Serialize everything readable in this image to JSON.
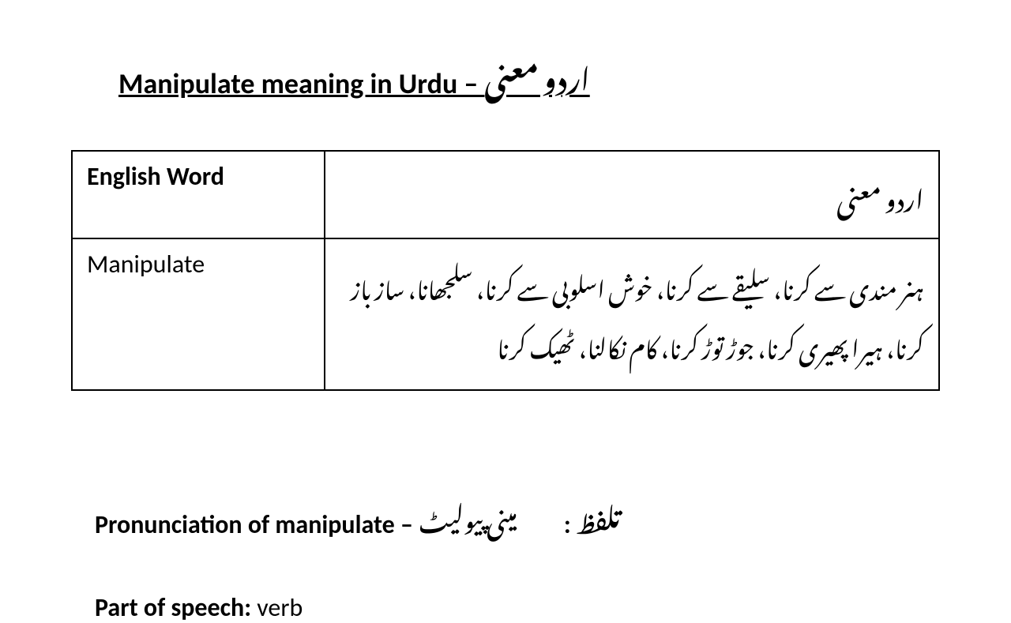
{
  "title": {
    "english_part": "Manipulate meaning in Urdu – ",
    "urdu_part": "اردو معنی"
  },
  "table": {
    "header": {
      "english": "English Word",
      "urdu": "اردو معنی"
    },
    "row": {
      "english_word": "Manipulate",
      "urdu_meaning": "ہنر مندی سے کرنا، سلیقے سے کرنا، خوش اسلوبی سے کرنا، سلجھانا، ساز باز کرنا، ہیرا پھیری کرنا، جوڑ توڑ کرنا، کام نکالنا، ٹھیک کرنا"
    }
  },
  "pronunciation": {
    "label": "Pronunciation of manipulate – ",
    "urdu_label": "تلفظ",
    "colon": " :",
    "value": "مینی پیولیٹ"
  },
  "part_of_speech": {
    "label": "Part of speech:",
    "value": "  verb"
  },
  "styles": {
    "background_color": "#ffffff",
    "text_color": "#000000",
    "border_color": "#000000",
    "title_fontsize": 36,
    "table_fontsize": 32,
    "body_fontsize": 32
  }
}
